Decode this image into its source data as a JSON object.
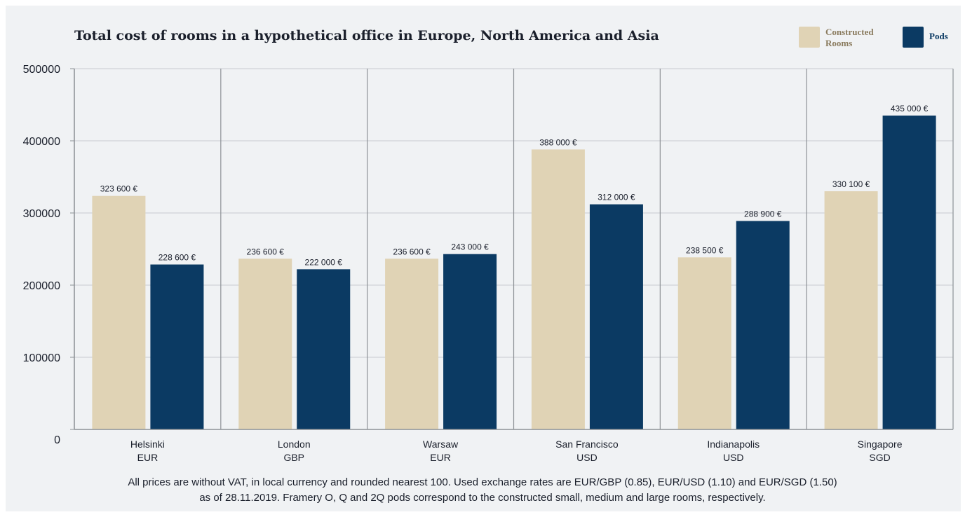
{
  "chart_data": {
    "type": "bar",
    "title": "Total cost of rooms in a hypothetical office in Europe, North America and Asia",
    "categories": [
      {
        "city": "Helsinki",
        "currency": "EUR"
      },
      {
        "city": "London",
        "currency": "GBP"
      },
      {
        "city": "Warsaw",
        "currency": "EUR"
      },
      {
        "city": "San Francisco",
        "currency": "USD"
      },
      {
        "city": "Indianapolis",
        "currency": "USD"
      },
      {
        "city": "Singapore",
        "currency": "SGD"
      }
    ],
    "series": [
      {
        "name": "Constructed Rooms",
        "color": "#e0d3b5",
        "values": [
          323600,
          236600,
          236600,
          388000,
          238500,
          330100
        ],
        "labels": [
          "323 600 €",
          "236 600 €",
          "236 600 €",
          "388 000 €",
          "238 500 €",
          "330 100 €"
        ]
      },
      {
        "name": "Pods",
        "color": "#0b3a63",
        "values": [
          228600,
          222000,
          243000,
          312000,
          288900,
          435000
        ],
        "labels": [
          "228 600 €",
          "222 000 €",
          "243 000 €",
          "312 000 €",
          "288 900 €",
          "435 000 €"
        ]
      }
    ],
    "ylim": [
      0,
      500000
    ],
    "yticks": [
      0,
      100000,
      200000,
      300000,
      400000,
      500000
    ],
    "grid": true,
    "legend_position": "top-right"
  },
  "legend": {
    "constructed_label": "Constructed Rooms",
    "pods_label": "Pods"
  },
  "footnote": {
    "line1": "All prices are without VAT, in local currency and rounded nearest 100. Used exchange rates are EUR/GBP (0.85), EUR/USD (1.10) and EUR/SGD (1.50)",
    "line2": "as of 28.11.2019. Framery O, Q and 2Q pods correspond to the constructed small, medium and large rooms, respectively."
  }
}
